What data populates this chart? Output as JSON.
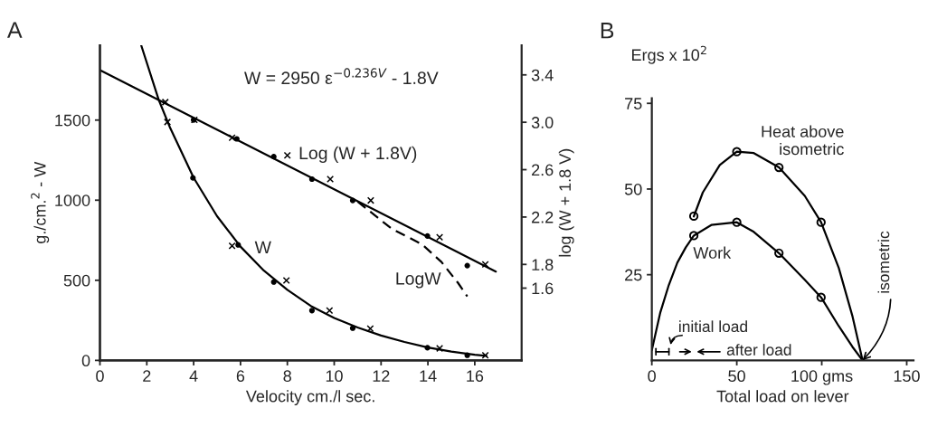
{
  "chart_data": [
    {
      "type": "line",
      "title": "A",
      "xlabel": "Velocity cm./l sec.",
      "ylabel": "g./cm.$^{2}$ - W",
      "y2label": "log (W + 1.8 V)",
      "xlim": [
        0,
        18
      ],
      "xticks": [
        0,
        2,
        4,
        6,
        8,
        10,
        12,
        14,
        16
      ],
      "ylim": [
        0,
        1967
      ],
      "yticks": [
        0,
        500,
        1000,
        1500
      ],
      "y2lim": [
        0.99,
        3.65
      ],
      "y2ticks": [
        1.6,
        1.8,
        2.2,
        2.6,
        {
          "value": 3.0,
          "label": "3.0"
        },
        3.4
      ],
      "grid": false,
      "series": [
        {
          "color": "#000000",
          "marker": "none",
          "line_style": "solid",
          "x": [
            1.76,
            2.5,
            3,
            4,
            5,
            6,
            7,
            8,
            9,
            10,
            11,
            12,
            13,
            14,
            15,
            16,
            16.5
          ],
          "values": [
            1967,
            1630,
            1450,
            1140,
            900,
            710,
            560,
            440,
            340,
            265,
            205,
            155,
            115,
            80,
            55,
            35,
            28
          ]
        },
        {
          "type": "scatter",
          "color": "#000000",
          "marker": "circle",
          "x": [
            3.97,
            5.9,
            7.42,
            9.05,
            10.79,
            13.98,
            15.68
          ],
          "values": [
            1139,
            721,
            489,
            311,
            201,
            79,
            32
          ]
        },
        {
          "type": "scatter",
          "color": "#000000",
          "marker": "cross",
          "x": [
            2.88,
            5.64,
            7.96,
            9.8,
            11.54,
            14.5,
            16.45
          ],
          "values": [
            1488,
            715,
            499,
            311,
            198,
            75,
            32
          ]
        },
        {
          "axis": "y2",
          "color": "#000000",
          "marker": "none",
          "line_style": "solid",
          "x": [
            0,
            16.9
          ],
          "values": [
            3.44,
            1.74
          ]
        },
        {
          "type": "scatter",
          "axis": "y2",
          "color": "#000000",
          "marker": "circle",
          "x": [
            4.0,
            5.84,
            7.42,
            9.05,
            10.79,
            13.98,
            15.68
          ],
          "values": [
            3.02,
            2.86,
            2.71,
            2.52,
            2.34,
            2.04,
            1.79
          ]
        },
        {
          "type": "scatter",
          "axis": "y2",
          "color": "#000000",
          "marker": "cross",
          "x": [
            2.79,
            4.03,
            5.64,
            8.0,
            9.83,
            11.56,
            14.5,
            16.45
          ],
          "values": [
            3.17,
            3.02,
            2.87,
            2.72,
            2.52,
            2.34,
            2.03,
            1.8
          ]
        },
        {
          "axis": "y2",
          "color": "#000000",
          "marker": "none",
          "line_style": "dashed",
          "x": [
            11.0,
            12.46,
            13.75,
            14.58,
            15.3,
            15.68
          ],
          "values": [
            2.33,
            2.1,
            1.97,
            1.82,
            1.64,
            1.53
          ]
        }
      ],
      "annotations": [
        "W = 2950 ε$^{−0.236V}$ - 1.8V",
        "W",
        "Log (W + 1.8V)",
        "LogW"
      ]
    },
    {
      "type": "line",
      "title": "B",
      "xlabel": "Total load on lever",
      "ylabel": "Ergs x 10$^{2}$",
      "xlim": [
        0,
        154
      ],
      "xticks": [
        0,
        50,
        {
          "value": 100,
          "label": "100 gms"
        },
        150
      ],
      "ylim": [
        0,
        76.5
      ],
      "yticks": [
        25,
        50,
        75
      ],
      "grid": false,
      "series": [
        {
          "color": "#000000",
          "marker": "none",
          "line_style": "solid",
          "x": [
            24.7,
            30,
            40,
            50,
            60,
            74.8,
            90,
            99.6,
            110,
            118,
            124
          ],
          "values": [
            42,
            49,
            57,
            60.9,
            60.5,
            56.3,
            48,
            40.3,
            27,
            13,
            0
          ]
        },
        {
          "type": "scatter",
          "color": "#000000",
          "marker": "circle",
          "x": [
            24.7,
            50,
            74.8,
            99.6
          ],
          "values": [
            42.1,
            60.9,
            56.3,
            40.3
          ]
        },
        {
          "color": "#000000",
          "marker": "none",
          "line_style": "solid",
          "x": [
            0,
            5,
            10,
            15,
            20,
            24.7,
            35,
            50,
            60,
            74.8,
            90,
            99.6,
            110,
            118,
            124
          ],
          "values": [
            3,
            14,
            22,
            28.5,
            33,
            36.4,
            39.5,
            40.3,
            37.5,
            31.3,
            23.5,
            18.4,
            10,
            4,
            0
          ]
        },
        {
          "type": "scatter",
          "color": "#000000",
          "marker": "circle",
          "x": [
            24.7,
            50,
            74.8,
            99.6
          ],
          "values": [
            36.4,
            40.3,
            31.3,
            18.4
          ]
        }
      ],
      "annotations": [
        "Heat above\nisometric",
        "Work",
        {
          "text": "isometric",
          "x": 124,
          "y": 0
        },
        "initial load",
        "after load"
      ]
    }
  ]
}
